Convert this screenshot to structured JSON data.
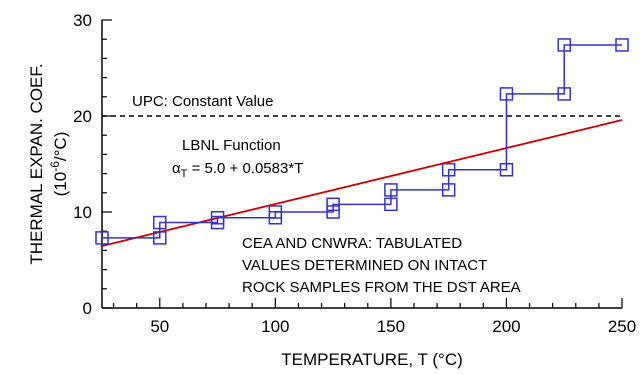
{
  "chart_data": {
    "type": "line",
    "title": "",
    "xlabel_text": "TEMPERATURE, T (",
    "xlabel_unit": "°C)",
    "ylabel_line1": "THERMAL EXPAN. COEF.",
    "ylabel_line2_a": "(10",
    "ylabel_line2_exp": "-6",
    "ylabel_line2_b": "/°C)",
    "xlim": [
      25,
      250
    ],
    "ylim": [
      0,
      30
    ],
    "x_ticks": [
      50,
      100,
      150,
      200,
      250
    ],
    "y_ticks": [
      0,
      10,
      20,
      30
    ],
    "grid": false,
    "series": [
      {
        "name": "UPC: Constant Value",
        "style": "dashed",
        "color": "#000000",
        "x": [
          25,
          250
        ],
        "y": [
          20,
          20
        ]
      },
      {
        "name": "LBNL Function",
        "style": "solid",
        "color": "#cc0000",
        "x": [
          25,
          250
        ],
        "y": [
          6.46,
          19.58
        ]
      },
      {
        "name": "CEA AND CNWRA: TABULATED VALUES DETERMINED ON INTACT ROCK SAMPLES FROM THE DST AREA",
        "style": "step-markers",
        "color": "#3333cc",
        "marker": "square",
        "x": [
          25,
          50,
          50,
          75,
          75,
          100,
          100,
          125,
          125,
          150,
          150,
          175,
          175,
          200,
          200,
          225,
          225,
          250
        ],
        "y": [
          7.3,
          7.3,
          8.9,
          8.9,
          9.4,
          9.4,
          10.0,
          10.0,
          10.8,
          10.8,
          12.3,
          12.3,
          14.4,
          14.4,
          22.3,
          22.3,
          27.4,
          27.4
        ]
      }
    ],
    "annotations": {
      "upc": "UPC: Constant Value",
      "lbnl": "LBNL Function",
      "lbnl_eq_alpha": "α",
      "lbnl_eq_sub": "T",
      "lbnl_eq_rest": " = 5.0 + 0.0583*T",
      "cea_line1": "CEA AND CNWRA: TABULATED",
      "cea_line2": "VALUES DETERMINED ON INTACT",
      "cea_line3": "ROCK SAMPLES FROM THE DST AREA"
    }
  }
}
